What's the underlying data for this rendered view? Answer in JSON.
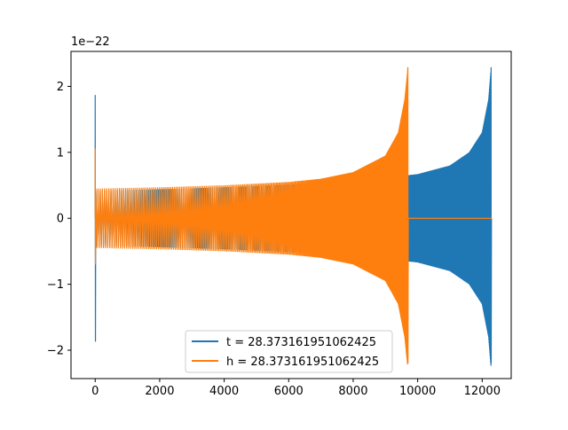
{
  "chart_data": {
    "type": "line",
    "title": "",
    "xlabel": "",
    "ylabel": "",
    "y_scale_label": "1e−22",
    "xlim": [
      -750,
      12900
    ],
    "ylim": [
      -2.43,
      2.53
    ],
    "xticks": [
      0,
      2000,
      4000,
      6000,
      8000,
      10000,
      12000
    ],
    "xtick_labels": [
      "0",
      "2000",
      "4000",
      "6000",
      "8000",
      "10000",
      "12000"
    ],
    "yticks": [
      2,
      1,
      0,
      -1,
      -2
    ],
    "ytick_labels": [
      "2",
      "1",
      "0",
      "−1",
      "−2"
    ],
    "grid": false,
    "legend_position": "lower center",
    "series": [
      {
        "name": "t = 28.373161951062425",
        "color": "#1f77b4",
        "samples": 12300,
        "spike_at_start": {
          "x": 0,
          "max": 1.87,
          "min": -1.87
        },
        "envelope": [
          [
            0,
            0.42
          ],
          [
            2000,
            0.44
          ],
          [
            4000,
            0.47
          ],
          [
            6000,
            0.51
          ],
          [
            8000,
            0.56
          ],
          [
            10000,
            0.67
          ],
          [
            11000,
            0.8
          ],
          [
            11600,
            1.0
          ],
          [
            12000,
            1.3
          ],
          [
            12200,
            1.8
          ],
          [
            12280,
            2.29
          ]
        ],
        "merger": {
          "x": 12280,
          "max": 2.29,
          "min": -2.2
        },
        "end_x": 12300
      },
      {
        "name": "h = 28.373161951062425",
        "color": "#ff7f0e",
        "samples": 12300,
        "spike_at_start": {
          "x": 0,
          "max": 1.06,
          "min": -0.7
        },
        "envelope": [
          [
            0,
            0.45
          ],
          [
            2000,
            0.47
          ],
          [
            4000,
            0.5
          ],
          [
            6000,
            0.55
          ],
          [
            7000,
            0.6
          ],
          [
            8000,
            0.7
          ],
          [
            9000,
            0.95
          ],
          [
            9400,
            1.3
          ],
          [
            9600,
            1.8
          ],
          [
            9700,
            2.29
          ]
        ],
        "merger": {
          "x": 9700,
          "max": 2.29,
          "min": -2.2
        },
        "end_x": 12300,
        "after_merger_value": 0.0
      }
    ]
  }
}
